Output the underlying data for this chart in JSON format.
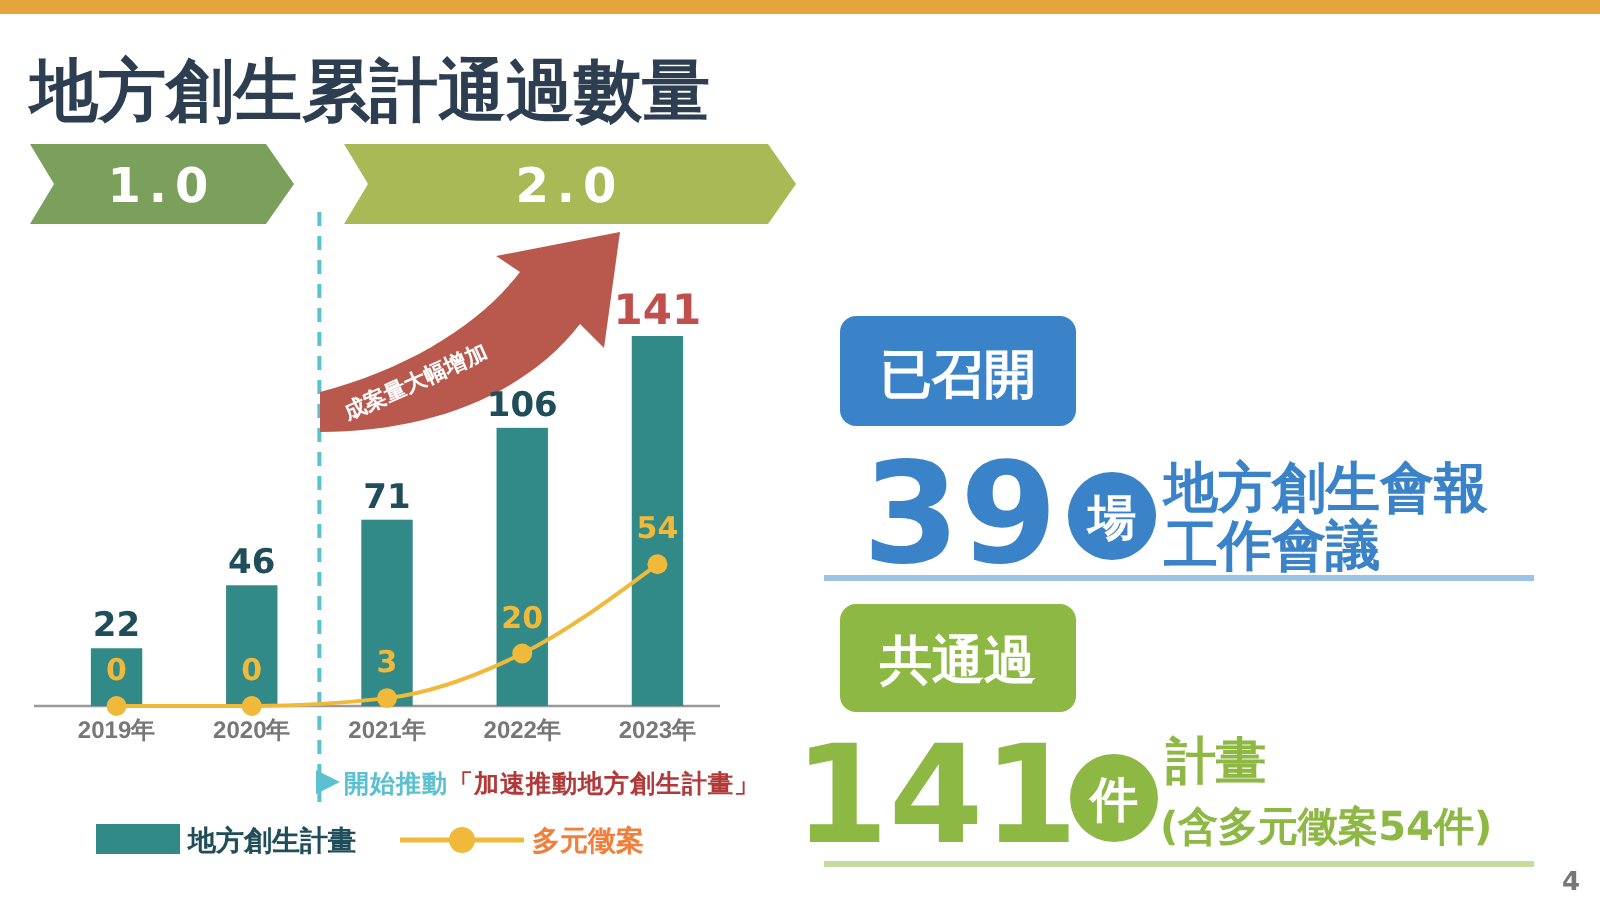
{
  "chart_data": [
    {
      "type": "bar",
      "title": "地方創生累計通過數量",
      "categories": [
        "2019年",
        "2020年",
        "2021年",
        "2022年",
        "2023年"
      ],
      "series": [
        {
          "name": "地方創生計畫",
          "type": "bar",
          "color": "#318a87",
          "values": [
            22,
            46,
            71,
            106,
            141
          ]
        },
        {
          "name": "多元徵案",
          "type": "line",
          "color": "#f0b93a",
          "values": [
            0,
            0,
            3,
            20,
            54
          ]
        }
      ],
      "data_labels": true,
      "legend": "bottom",
      "marker": "circle",
      "annotations": [
        "1.0",
        "2.0",
        "成案量大幅增加",
        "開始推動",
        "「加速推動地方創生計畫」"
      ]
    },
    {
      "type": "other",
      "annotations": [
        "已召開",
        "39",
        "場",
        "地方創生會報",
        "工作會議",
        "共通過",
        "141",
        "件",
        "計畫",
        "(含多元徵案54件)",
        "4"
      ]
    }
  ]
}
